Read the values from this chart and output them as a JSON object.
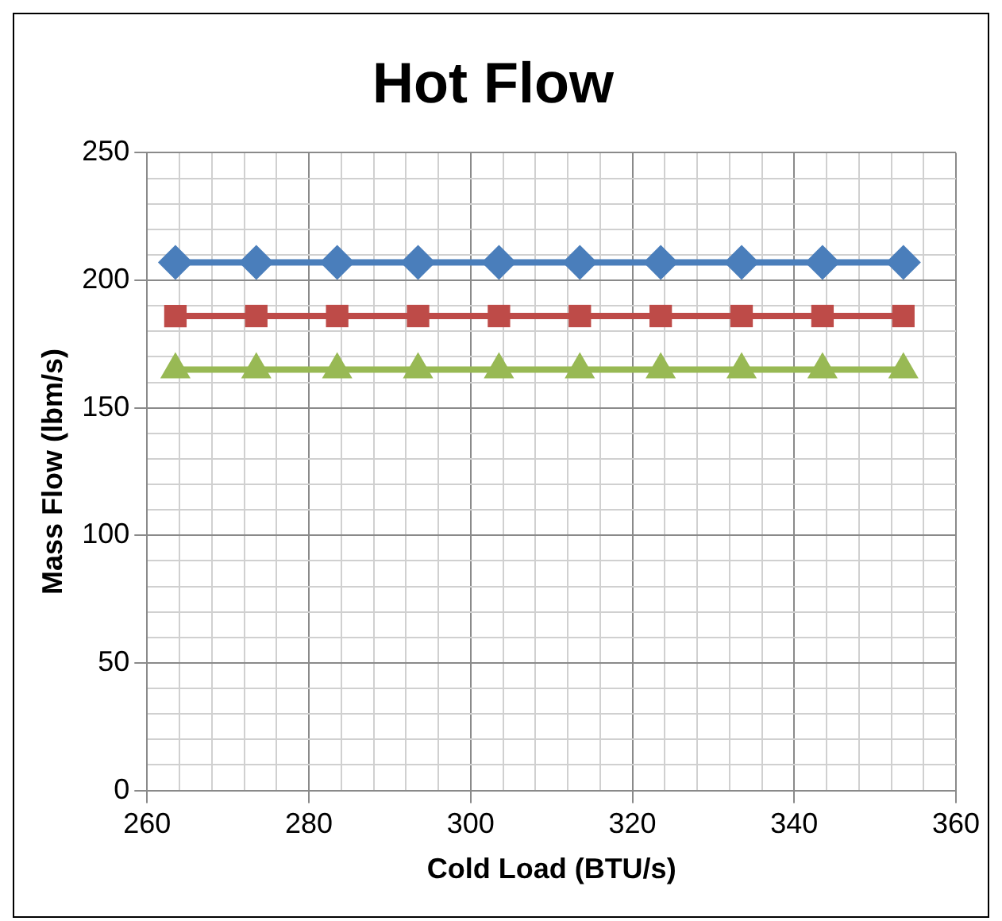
{
  "chart_data": {
    "type": "line",
    "title": "Hot Flow",
    "xlabel": "Cold Load (BTU/s)",
    "ylabel": "Mass Flow (lbm/s)",
    "x": [
      263.5,
      273.5,
      283.5,
      293.5,
      303.5,
      313.5,
      323.5,
      333.5,
      343.5,
      353.5
    ],
    "series": [
      {
        "color": "#4a7ebb",
        "marker": "diamond",
        "values": [
          207,
          207,
          207,
          207,
          207,
          207,
          207,
          207,
          207,
          207
        ]
      },
      {
        "color": "#be4b48",
        "marker": "square",
        "values": [
          186,
          186,
          186,
          186,
          186,
          186,
          186,
          186,
          186,
          186
        ]
      },
      {
        "color": "#98b954",
        "marker": "triangle",
        "values": [
          165,
          165,
          165,
          165,
          165,
          165,
          165,
          165,
          165,
          165
        ]
      }
    ],
    "xlim": [
      260,
      360
    ],
    "xticks": [
      260,
      {
        "value": 264,
        "label": null
      },
      {
        "value": 268,
        "label": null
      },
      {
        "value": 272,
        "label": null
      },
      {
        "value": 276,
        "label": null
      },
      280,
      {
        "value": 284,
        "label": null
      },
      {
        "value": 288,
        "label": null
      },
      {
        "value": 292,
        "label": null
      },
      {
        "value": 296,
        "label": null
      },
      300,
      {
        "value": 304,
        "label": null
      },
      {
        "value": 308,
        "label": null
      },
      {
        "value": 312,
        "label": null
      },
      {
        "value": 316,
        "label": null
      },
      320,
      {
        "value": 324,
        "label": null
      },
      {
        "value": 328,
        "label": null
      },
      {
        "value": 332,
        "label": null
      },
      {
        "value": 336,
        "label": null
      },
      340,
      {
        "value": 344,
        "label": null
      },
      {
        "value": 348,
        "label": null
      },
      {
        "value": 352,
        "label": null
      },
      {
        "value": 356,
        "label": null
      },
      360
    ],
    "ylim": [
      0,
      250
    ],
    "yticks": [
      0,
      {
        "value": 10,
        "label": null
      },
      {
        "value": 20,
        "label": null
      },
      {
        "value": 30,
        "label": null
      },
      {
        "value": 40,
        "label": null
      },
      50,
      {
        "value": 60,
        "label": null
      },
      {
        "value": 70,
        "label": null
      },
      {
        "value": 80,
        "label": null
      },
      {
        "value": 90,
        "label": null
      },
      100,
      {
        "value": 110,
        "label": null
      },
      {
        "value": 120,
        "label": null
      },
      {
        "value": 130,
        "label": null
      },
      {
        "value": 140,
        "label": null
      },
      150,
      {
        "value": 160,
        "label": null
      },
      {
        "value": 170,
        "label": null
      },
      {
        "value": 180,
        "label": null
      },
      {
        "value": 190,
        "label": null
      },
      200,
      {
        "value": 210,
        "label": null
      },
      {
        "value": 220,
        "label": null
      },
      {
        "value": 230,
        "label": null
      },
      {
        "value": 240,
        "label": null
      },
      250
    ],
    "grid": true,
    "legend": false,
    "line_style": "solid"
  }
}
